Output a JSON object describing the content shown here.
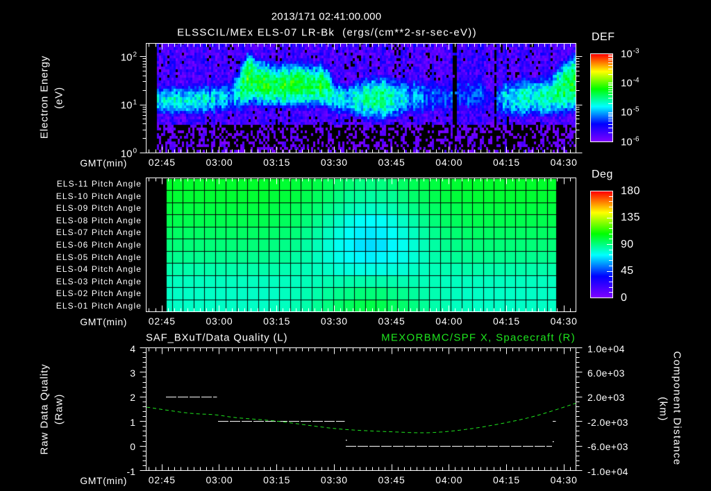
{
  "header": {
    "timestamp": "2013/171 02:41:00.000"
  },
  "time_axis": {
    "label": "GMT(min)",
    "start": "02:41:00",
    "span_min": 112.05,
    "major_labels": [
      "02:45",
      "03:00",
      "03:15",
      "03:30",
      "03:45",
      "04:00",
      "04:15",
      "04:30"
    ],
    "major_offsets_min": [
      4,
      19,
      34,
      49,
      64,
      79,
      94,
      109
    ],
    "minor_step_min": 1.6667
  },
  "colormap": {
    "name": "rainbow",
    "stops": [
      [
        0,
        "#7f00ff"
      ],
      [
        0.2,
        "#0000ff"
      ],
      [
        0.4,
        "#00ffff"
      ],
      [
        0.6,
        "#00ff00"
      ],
      [
        0.8,
        "#ffff00"
      ],
      [
        1,
        "#ff0000"
      ]
    ]
  },
  "colors": {
    "background": "#000000",
    "axes": "#ffffff",
    "right_axis_series": "#1ee61e"
  },
  "chart_data": [
    {
      "type": "heatmap",
      "title": "ELSSCIL/MEx ELS-07 LR-Bk  (ergs/(cm**2-sr-sec-eV))",
      "xlabel": "GMT(min)",
      "ylabel": "Electron Energy",
      "yunits": "(eV)",
      "yscale": "log",
      "ylim": [
        1,
        188
      ],
      "y_ticks": [
        {
          "value": 100,
          "base": "10",
          "exp": "2"
        },
        {
          "value": 10,
          "base": "10",
          "exp": "1"
        },
        {
          "value": 1,
          "base": "10",
          "exp": "0"
        }
      ],
      "colorbar": {
        "label": "DEF",
        "scale": "log",
        "range": [
          1e-06,
          0.001
        ],
        "ticks": [
          {
            "log10": -3,
            "base": "10",
            "exp": "-3"
          },
          {
            "log10": -4,
            "base": "10",
            "exp": "-4"
          },
          {
            "log10": -5,
            "base": "10",
            "exp": "-5"
          },
          {
            "log10": -6,
            "base": "10",
            "exp": "-6"
          }
        ]
      },
      "data_range_min": [
        2.7,
        111.9
      ],
      "model": {
        "columns": [
          "t_min",
          "center_log10_eV",
          "sigma_log10_eV",
          "peak_log10_DEF"
        ],
        "nodes": [
          [
            2.7,
            1.08,
            0.24,
            -4.85
          ],
          [
            8.0,
            1.08,
            0.24,
            -4.8
          ],
          [
            16.0,
            1.1,
            0.25,
            -4.85
          ],
          [
            21.6,
            1.15,
            0.28,
            -5.0
          ],
          [
            24.3,
            1.3,
            0.32,
            -4.7
          ],
          [
            26.1,
            1.5,
            0.35,
            -4.2
          ],
          [
            27.3,
            1.55,
            0.35,
            -4.15
          ],
          [
            28.8,
            1.45,
            0.32,
            -4.3
          ],
          [
            33.0,
            1.4,
            0.3,
            -4.3
          ],
          [
            38.0,
            1.4,
            0.3,
            -4.3
          ],
          [
            46.9,
            1.38,
            0.3,
            -4.35
          ],
          [
            48.8,
            1.15,
            0.28,
            -4.75
          ],
          [
            52.4,
            1.1,
            0.25,
            -4.85
          ],
          [
            55.0,
            1.12,
            0.3,
            -4.6
          ],
          [
            60.0,
            1.12,
            0.32,
            -4.5
          ],
          [
            65.0,
            1.12,
            0.32,
            -4.65
          ],
          [
            68.7,
            1.15,
            0.32,
            -5.0
          ],
          [
            74.2,
            1.15,
            0.34,
            -5.2
          ],
          [
            78.5,
            1.15,
            0.34,
            -5.3
          ],
          [
            81.4,
            1.2,
            0.35,
            -5.3
          ],
          [
            86.8,
            1.2,
            0.35,
            -5.25
          ],
          [
            90.0,
            1.15,
            0.32,
            -5.6
          ],
          [
            92.5,
            1.1,
            0.3,
            -5.0
          ],
          [
            96.0,
            1.12,
            0.3,
            -4.75
          ],
          [
            100.0,
            1.15,
            0.3,
            -4.65
          ],
          [
            105.0,
            1.15,
            0.3,
            -4.65
          ],
          [
            107.7,
            1.3,
            0.35,
            -4.45
          ],
          [
            111.9,
            1.45,
            0.4,
            -4.3
          ]
        ],
        "background_log10_DEF": -5.75,
        "low_energy_background_log10_DEF": -6.05,
        "low_energy_cutoff_log10_eV": 0.55,
        "dropouts_min": [
          [
            79.9,
            80.9
          ],
          [
            91.0,
            91.6
          ]
        ]
      }
    },
    {
      "type": "heatmap",
      "xlabel": "GMT(min)",
      "y_categories": [
        "ELS-11 Pitch Angle",
        "ELS-10 Pitch Angle",
        "ELS-09 Pitch Angle",
        "ELS-08 Pitch Angle",
        "ELS-07 Pitch Angle",
        "ELS-06 Pitch Angle",
        "ELS-05 Pitch Angle",
        "ELS-04 Pitch Angle",
        "ELS-03 Pitch Angle",
        "ELS-02 Pitch Angle",
        "ELS-01 Pitch Angle"
      ],
      "colorbar": {
        "label": "Deg",
        "range": [
          0,
          180
        ],
        "ticks": [
          {
            "value": 180,
            "label": "180"
          },
          {
            "value": 135,
            "label": "135"
          },
          {
            "value": 90,
            "label": "90"
          },
          {
            "value": 45,
            "label": "45"
          },
          {
            "value": 0,
            "label": "0"
          }
        ]
      },
      "columns": {
        "x_start_min": 4.95,
        "first_edge_min": 6.67,
        "step_min": 2.8,
        "x_end_min": 107.0
      },
      "values_deg": [
        [
          102,
          102,
          102,
          102,
          102,
          102,
          102,
          102,
          102,
          102,
          102,
          101,
          100,
          99,
          98,
          96,
          94,
          92,
          90,
          90,
          90,
          92,
          94,
          96,
          98,
          99,
          100,
          101,
          102,
          102,
          102,
          102,
          102,
          102,
          102,
          102,
          102
        ],
        [
          101,
          101,
          101,
          101,
          101,
          101,
          101,
          101,
          101,
          101,
          100,
          100,
          99,
          97,
          95,
          93,
          90,
          87,
          86,
          85,
          86,
          87,
          90,
          93,
          95,
          97,
          99,
          100,
          100,
          101,
          101,
          101,
          101,
          101,
          101,
          101,
          101
        ],
        [
          99,
          99,
          99,
          99,
          99,
          99,
          99,
          99,
          99,
          99,
          98,
          97,
          96,
          94,
          92,
          89,
          86,
          83,
          81,
          80,
          81,
          83,
          86,
          89,
          92,
          94,
          96,
          97,
          98,
          99,
          99,
          99,
          99,
          99,
          99,
          99,
          99
        ],
        [
          97,
          97,
          97,
          97,
          97,
          97,
          97,
          97,
          97,
          97,
          96,
          95,
          94,
          91,
          88,
          84,
          80,
          76,
          73,
          72,
          73,
          76,
          80,
          84,
          88,
          91,
          94,
          95,
          96,
          97,
          97,
          97,
          97,
          97,
          97,
          97,
          97
        ],
        [
          94,
          94,
          94,
          94,
          94,
          94,
          94,
          94,
          94,
          94,
          93,
          92,
          91,
          88,
          85,
          81,
          77,
          73,
          70,
          69,
          70,
          73,
          77,
          81,
          85,
          88,
          91,
          92,
          93,
          94,
          94,
          94,
          94,
          94,
          94,
          94,
          94
        ],
        [
          91,
          91,
          91,
          91,
          91,
          91,
          91,
          91,
          91,
          91,
          90,
          89,
          88,
          85,
          82,
          78,
          74,
          71,
          68,
          67,
          68,
          71,
          74,
          78,
          82,
          85,
          88,
          89,
          90,
          91,
          91,
          91,
          91,
          91,
          91,
          91,
          91
        ],
        [
          88,
          88,
          88,
          88,
          88,
          88,
          88,
          88,
          88,
          88,
          87,
          87,
          85,
          84,
          81,
          78,
          75,
          73,
          71,
          70,
          71,
          73,
          75,
          78,
          81,
          84,
          85,
          87,
          87,
          88,
          88,
          88,
          88,
          88,
          88,
          88,
          88
        ],
        [
          84,
          84,
          84,
          84,
          84,
          84,
          84,
          84,
          84,
          84,
          84,
          83,
          83,
          82,
          81,
          80,
          78,
          77,
          76,
          76,
          76,
          77,
          78,
          80,
          81,
          82,
          83,
          83,
          84,
          84,
          84,
          84,
          84,
          84,
          84,
          84,
          84
        ],
        [
          81,
          81,
          81,
          81,
          81,
          81,
          81,
          81,
          81,
          81,
          81,
          81,
          81,
          82,
          82,
          83,
          83,
          84,
          84,
          84,
          84,
          84,
          83,
          83,
          82,
          82,
          81,
          81,
          81,
          81,
          81,
          81,
          81,
          81,
          81,
          81,
          81
        ],
        [
          80,
          80,
          80,
          80,
          80,
          80,
          80,
          80,
          80,
          80,
          80,
          81,
          82,
          83,
          84,
          86,
          88,
          89,
          91,
          91,
          91,
          89,
          88,
          86,
          84,
          83,
          82,
          81,
          80,
          80,
          80,
          80,
          80,
          80,
          80,
          80,
          80
        ],
        [
          80,
          80,
          80,
          80,
          80,
          80,
          80,
          80,
          80,
          80,
          81,
          81,
          83,
          84,
          87,
          90,
          93,
          95,
          97,
          98,
          97,
          95,
          93,
          90,
          87,
          84,
          83,
          81,
          81,
          80,
          80,
          80,
          80,
          80,
          80,
          80,
          80
        ]
      ]
    },
    {
      "type": "line",
      "title_left": "SAF_BXuT/Data Quality (L)",
      "title_right": "MEXORBMC/SPF X, Spacecraft (R)",
      "xlabel": "GMT(min)",
      "ylabel_left": "Raw Data Quality",
      "yunits_left": "(Raw)",
      "ylabel_right": "Component Distance",
      "yunits_right": "(km)",
      "ylim_left": [
        -1,
        4
      ],
      "ylim_right": [
        -10000,
        10000
      ],
      "y_ticks_left": [
        {
          "value": 4,
          "label": "4"
        },
        {
          "value": 3,
          "label": "3"
        },
        {
          "value": 2,
          "label": "2"
        },
        {
          "value": 1,
          "label": "1"
        },
        {
          "value": 0,
          "label": "0"
        },
        {
          "value": -1,
          "label": "-1"
        }
      ],
      "y_ticks_right": [
        {
          "value": 10000,
          "label": "1.0e+04"
        },
        {
          "value": 6000,
          "label": "6.0e+03"
        },
        {
          "value": 2000,
          "label": "2.0e+03"
        },
        {
          "value": -2000,
          "label": "-2.0e+03"
        },
        {
          "value": -6000,
          "label": "-6.0e+03"
        },
        {
          "value": -10000,
          "label": "-1.0e+04"
        }
      ],
      "series": [
        {
          "name": "SAF_BXuT/Data Quality",
          "axis": "left",
          "color": "#ffffff",
          "segments": [
            {
              "t_min": [
                5.0,
                18.4
              ],
              "value": 2
            },
            {
              "t_min": [
                18.6,
                51.7
              ],
              "value": 1
            },
            {
              "t_min": [
                52.0,
                105.9
              ],
              "value": 0
            },
            {
              "t_min": [
                106.1,
                106.9
              ],
              "value": 1
            }
          ],
          "points": [
            {
              "t_min": 52.0,
              "value": 0.27
            },
            {
              "t_min": 106.0,
              "value": 0.2
            }
          ]
        },
        {
          "name": "MEXORBMC/SPF X, Spacecraft",
          "axis": "right",
          "color": "#1ee61e",
          "t_min": [
            0,
            10.7,
            17.9,
            23.4,
            34.4,
            45.3,
            52.4,
            63.3,
            74.2,
            85.0,
            95.9,
            103.2,
            112.05
          ],
          "values_km": [
            330,
            -620,
            -920,
            -1380,
            -1980,
            -2880,
            -3330,
            -3670,
            -3820,
            -3160,
            -1940,
            -810,
            960
          ]
        }
      ]
    }
  ]
}
